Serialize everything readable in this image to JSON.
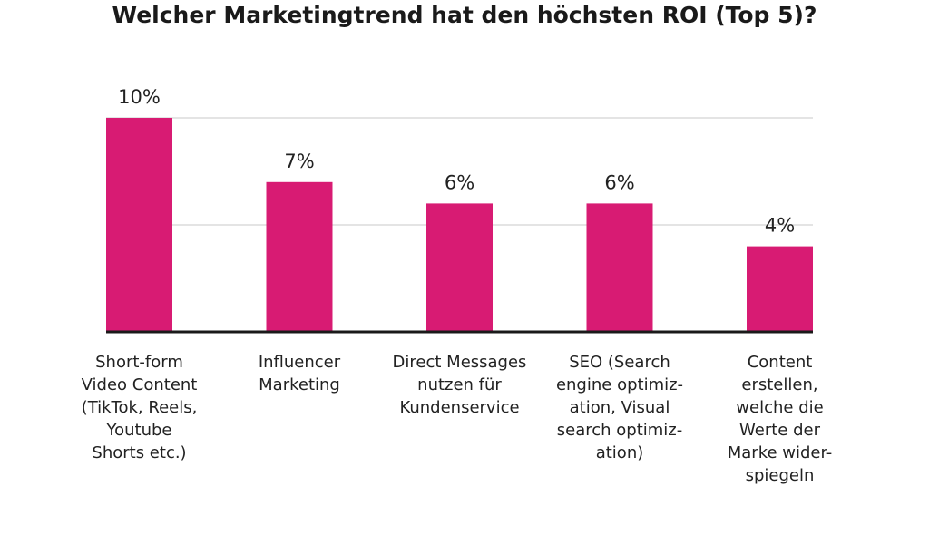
{
  "chart_data": {
    "type": "bar",
    "title": "Welcher Marketingtrend hat den höchsten ROI (Top 5)?",
    "categories": [
      [
        "Short-form",
        "Video Content",
        "(TikTok, Reels,",
        "Youtube",
        "Shorts etc.)"
      ],
      [
        "Influencer",
        "Marketing"
      ],
      [
        "Direct Messages",
        "nutzen für",
        "Kundenservice"
      ],
      [
        "SEO (Search",
        "engine optimiz-",
        "ation, Visual",
        "search optimiz-",
        "ation)"
      ],
      [
        "Content",
        "erstellen,",
        "welche die",
        "Werte der",
        "Marke wider-",
        "spiegeln"
      ]
    ],
    "values": [
      10,
      7,
      6,
      6,
      4
    ],
    "value_labels": [
      "10%",
      "7%",
      "6%",
      "6%",
      "4%"
    ],
    "ylim": [
      0,
      10
    ],
    "gridlines": [
      5,
      10
    ],
    "grid": true,
    "bar_color": "#d81b73",
    "baseline_color": "#1a1a1a",
    "grid_color": "#c8c8c8",
    "xlabel": "",
    "ylabel": ""
  }
}
